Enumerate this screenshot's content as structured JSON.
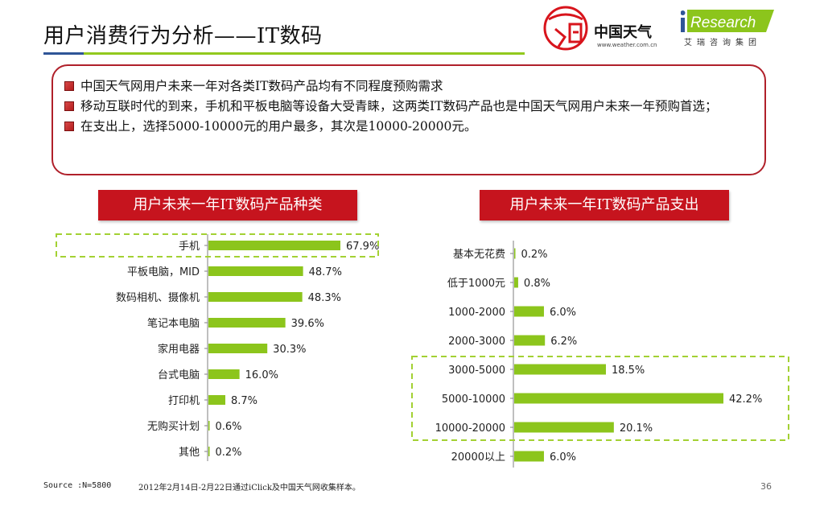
{
  "page": {
    "title": "用户消费行为分析——IT数码",
    "page_number": "36"
  },
  "logos": {
    "weather_seal_text": "天气中國",
    "weather_name": "中国天气",
    "weather_url": "www.weather.com.cn",
    "iresearch_name": "iResearch",
    "iresearch_sub": "艾瑞咨询集团"
  },
  "summary": {
    "points": [
      "中国天气网用户未来一年对各类IT数码产品均有不同程度预购需求",
      "移动互联时代的到来，手机和平板电脑等设备大受青睐，这两类IT数码产品也是中国天气网用户未来一年预购首选；",
      "在支出上，选择5000-10000元的用户最多，其次是10000-20000元。"
    ]
  },
  "footer": {
    "source": "Source :N=5800",
    "note": "2012年2月14日-2月22日通过iClick及中国天气网收集样本。"
  },
  "colors": {
    "accent_red": "#c6141e",
    "bar_green": "#8cc51c",
    "highlight_dash": "#a3d133"
  },
  "chart_data": [
    {
      "type": "bar",
      "orientation": "horizontal",
      "title": "用户未来一年IT数码产品种类",
      "categories": [
        "手机",
        "平板电脑，MID",
        "数码相机、摄像机",
        "笔记本电脑",
        "家用电器",
        "台式电脑",
        "打印机",
        "无购买计划",
        "其他"
      ],
      "values": [
        67.9,
        48.7,
        48.3,
        39.6,
        30.3,
        16.0,
        8.7,
        0.6,
        0.2
      ],
      "value_labels": [
        "67.9%",
        "48.7%",
        "48.3%",
        "39.6%",
        "30.3%",
        "16.0%",
        "8.7%",
        "0.6%",
        "0.2%"
      ],
      "unit": "%",
      "highlighted_categories": [
        "手机"
      ]
    },
    {
      "type": "bar",
      "orientation": "horizontal",
      "title": "用户未来一年IT数码产品支出",
      "categories": [
        "基本无花费",
        "低于1000元",
        "1000-2000",
        "2000-3000",
        "3000-5000",
        "5000-10000",
        "10000-20000",
        "20000以上"
      ],
      "values": [
        0.2,
        0.8,
        6.0,
        6.2,
        18.5,
        42.2,
        20.1,
        6.0
      ],
      "value_labels": [
        "0.2%",
        "0.8%",
        "6.0%",
        "6.2%",
        "18.5%",
        "42.2%",
        "20.1%",
        "6.0%"
      ],
      "unit": "%",
      "highlighted_categories": [
        "3000-5000",
        "5000-10000",
        "10000-20000"
      ]
    }
  ]
}
